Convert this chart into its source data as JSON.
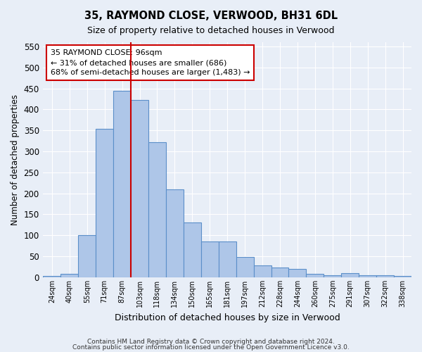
{
  "title": "35, RAYMOND CLOSE, VERWOOD, BH31 6DL",
  "subtitle": "Size of property relative to detached houses in Verwood",
  "xlabel": "Distribution of detached houses by size in Verwood",
  "ylabel": "Number of detached properties",
  "footnote1": "Contains HM Land Registry data © Crown copyright and database right 2024.",
  "footnote2": "Contains public sector information licensed under the Open Government Licence v3.0.",
  "bar_categories": [
    "24sqm",
    "40sqm",
    "55sqm",
    "71sqm",
    "87sqm",
    "103sqm",
    "118sqm",
    "134sqm",
    "150sqm",
    "165sqm",
    "181sqm",
    "197sqm",
    "212sqm",
    "228sqm",
    "244sqm",
    "260sqm",
    "275sqm",
    "291sqm",
    "307sqm",
    "322sqm",
    "338sqm"
  ],
  "bar_values": [
    4,
    8,
    100,
    354,
    445,
    422,
    322,
    210,
    130,
    85,
    85,
    49,
    28,
    24,
    20,
    8,
    5,
    10,
    5,
    5,
    3
  ],
  "bar_color": "#aec6e8",
  "bar_edge_color": "#5b8fc9",
  "ylim": [
    0,
    560
  ],
  "yticks": [
    0,
    50,
    100,
    150,
    200,
    250,
    300,
    350,
    400,
    450,
    500,
    550
  ],
  "property_label": "35 RAYMOND CLOSE: 96sqm",
  "annotation_line1": "← 31% of detached houses are smaller (686)",
  "annotation_line2": "68% of semi-detached houses are larger (1,483) →",
  "vline_color": "#cc0000",
  "annotation_box_color": "#cc0000",
  "background_color": "#e8eef7",
  "grid_color": "#ffffff"
}
